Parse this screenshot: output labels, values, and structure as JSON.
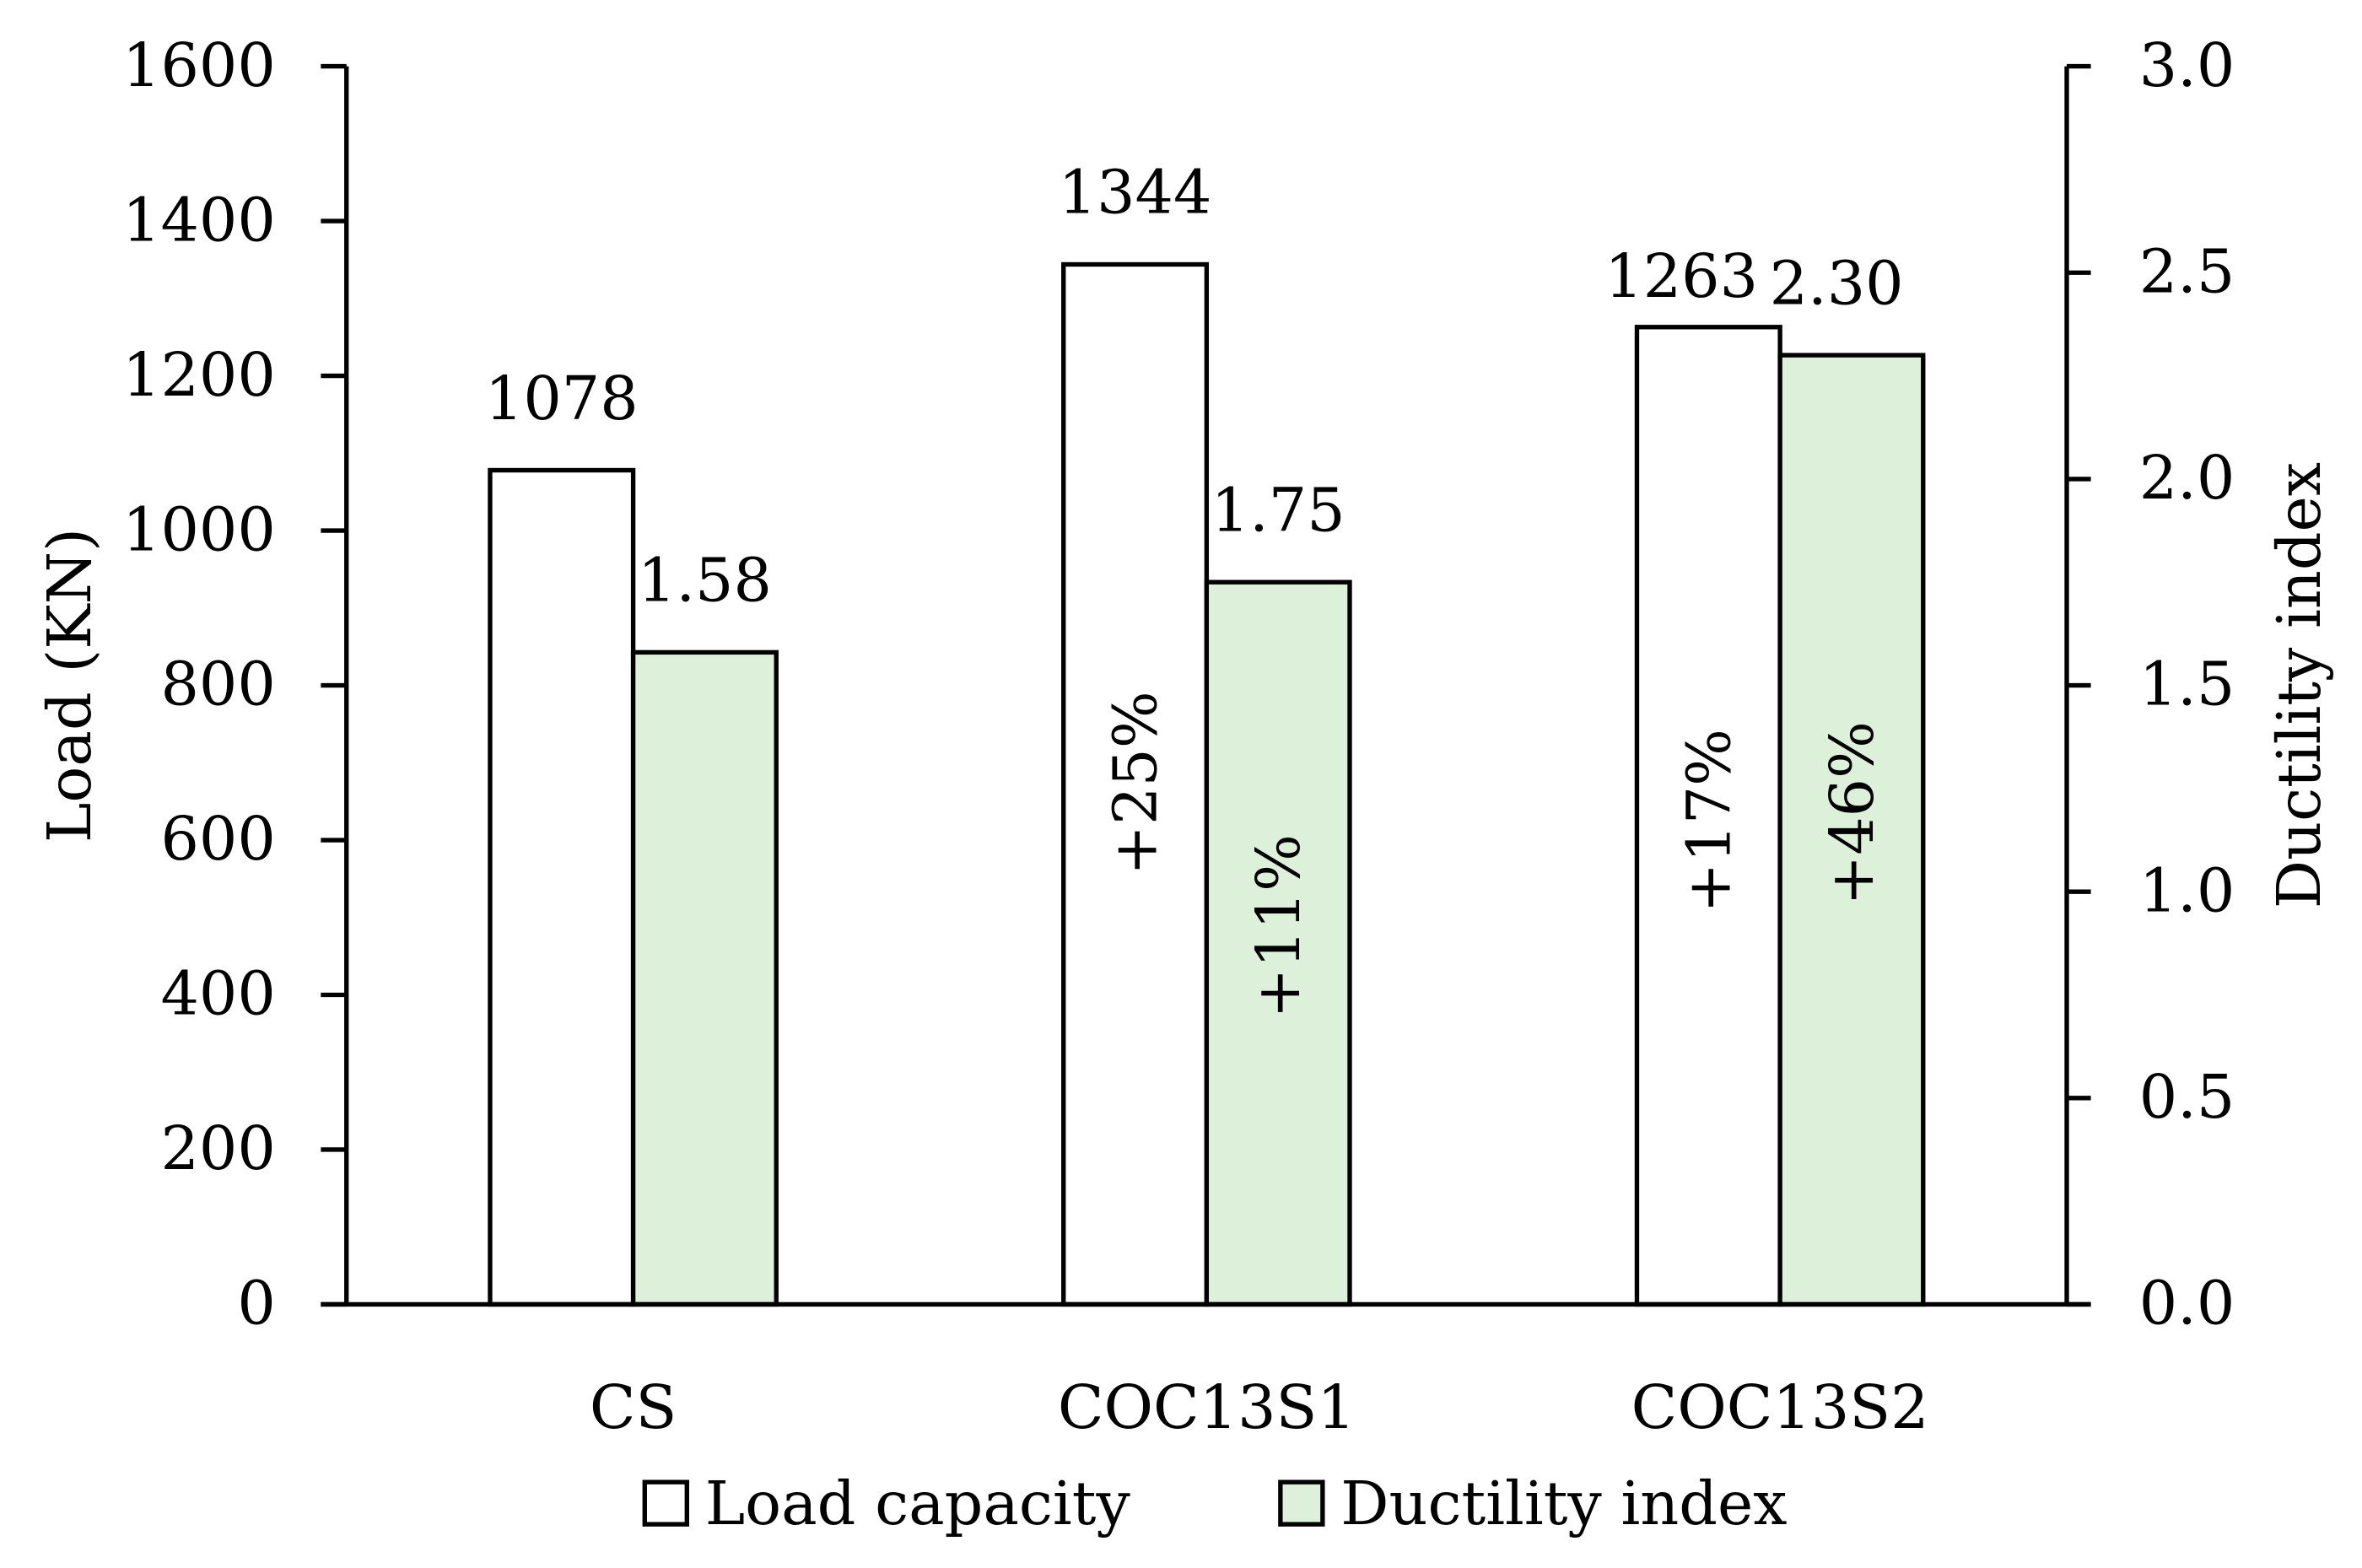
{
  "chart_data": {
    "type": "bar",
    "categories": [
      "CS",
      "COC13S1",
      "COC13S2"
    ],
    "series": [
      {
        "name": "Load capacity",
        "axis": "left",
        "values": [
          1078,
          1344,
          1263
        ],
        "labels": [
          "1078",
          "1344",
          "1263"
        ],
        "color": "#FFFFFF"
      },
      {
        "name": "Ductility index",
        "axis": "right",
        "values": [
          1.58,
          1.75,
          2.3
        ],
        "labels": [
          "1.58",
          "1.75",
          "2.30"
        ],
        "color": "#DDF0DA"
      }
    ],
    "annotations": [
      {
        "category": "COC13S1",
        "series": "Load capacity",
        "text": "+25%"
      },
      {
        "category": "COC13S1",
        "series": "Ductility index",
        "text": "+11%"
      },
      {
        "category": "COC13S2",
        "series": "Load capacity",
        "text": "+17%"
      },
      {
        "category": "COC13S2",
        "series": "Ductility index",
        "text": "+46%"
      }
    ],
    "ylabel": "Load (KN)",
    "y2label": "Ductility index",
    "ylim": [
      0,
      1600
    ],
    "y2lim": [
      0,
      3.0
    ],
    "yticks": [
      "0",
      "200",
      "400",
      "600",
      "800",
      "1000",
      "1200",
      "1400",
      "1600"
    ],
    "y2ticks": [
      "0.0",
      "0.5",
      "1.0",
      "1.5",
      "2.0",
      "2.5",
      "3.0"
    ],
    "grid": false,
    "legend": "bottom"
  }
}
